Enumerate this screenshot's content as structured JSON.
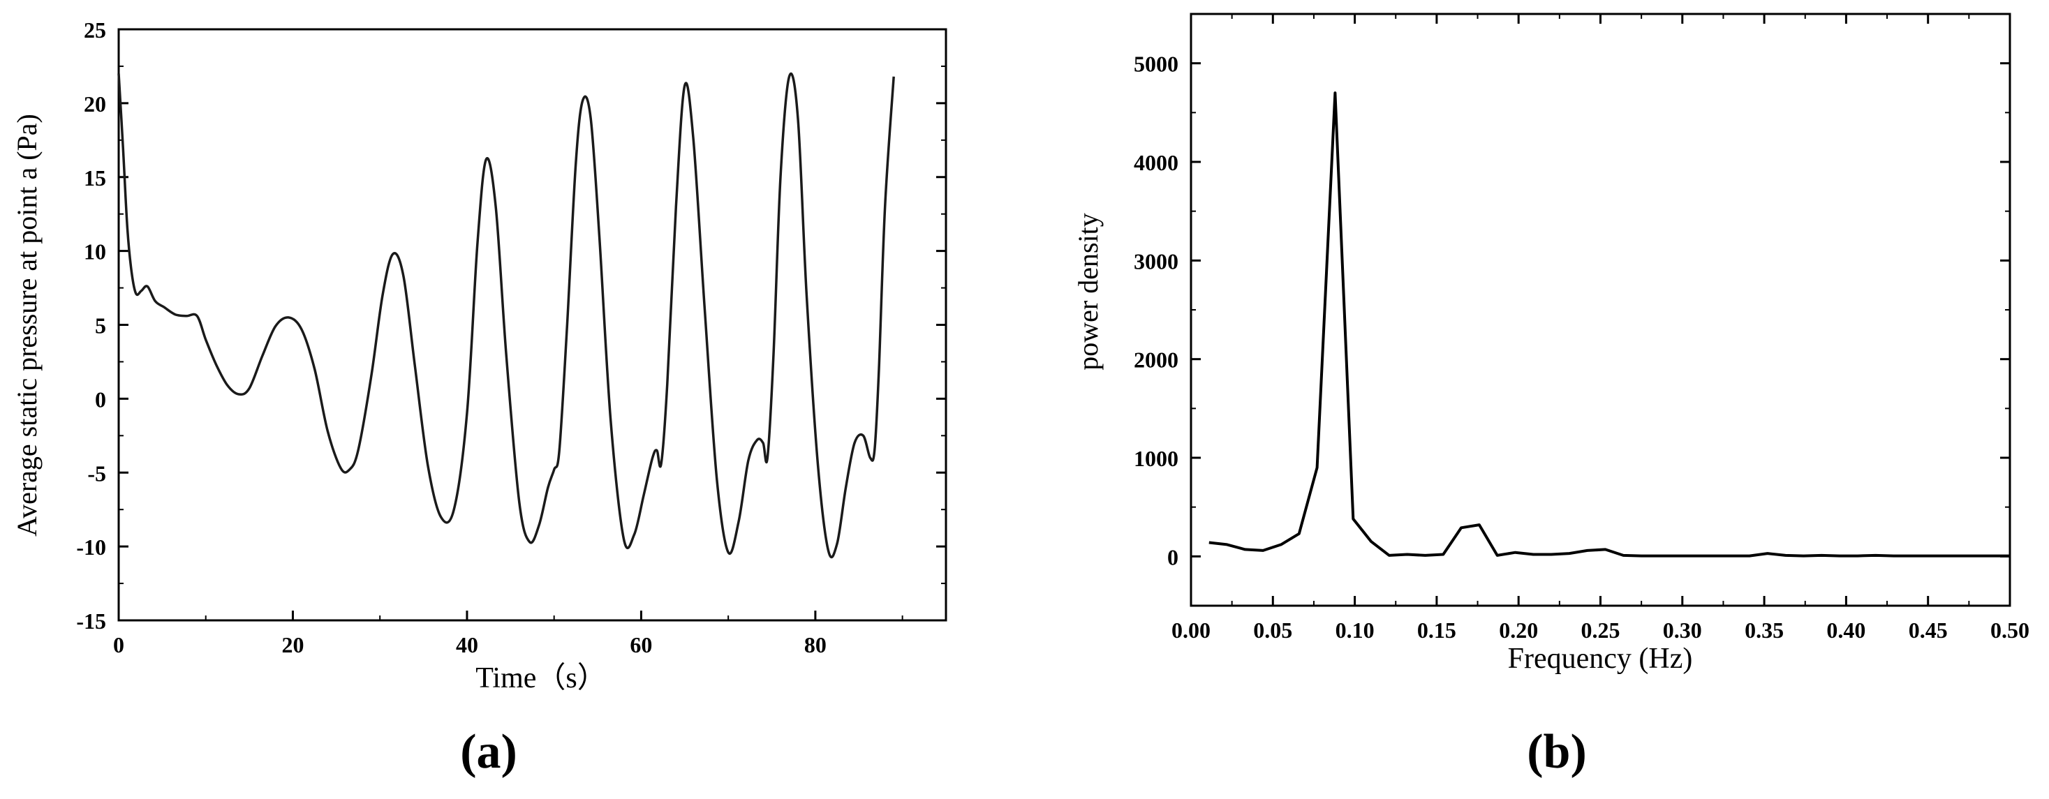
{
  "chart_data": [
    {
      "type": "line",
      "panel_label": "(a)",
      "title": "",
      "xlabel": "Time（s）",
      "ylabel": "Average static pressure at point a (Pa)",
      "xlim": [
        0,
        95
      ],
      "ylim": [
        -15,
        25
      ],
      "xticks": [
        "0",
        "20",
        "40",
        "60",
        "80"
      ],
      "yticks": [
        "-15",
        "-10",
        "-5",
        "0",
        "5",
        "10",
        "15",
        "20",
        "25"
      ],
      "grid": false,
      "color": "#1a1a1a",
      "series": [
        {
          "x": [
            0,
            0.5,
            1.0,
            1.5,
            2.0,
            2.6,
            3.3,
            4.2,
            5.2,
            6.5,
            7.8,
            9.0,
            10.0,
            11.2,
            12.5,
            13.8,
            15.0,
            16.5,
            18.0,
            19.5,
            21.0,
            22.5,
            24.0,
            25.5,
            26.5,
            27.5,
            29.0,
            30.3,
            31.5,
            32.7,
            34.0,
            35.5,
            37.0,
            38.5,
            40.0,
            41.2,
            42.2,
            43.3,
            44.5,
            46.0,
            47.2,
            48.3,
            49.3,
            50.0,
            50.6,
            51.5,
            52.5,
            53.3,
            54.2,
            55.2,
            56.5,
            58.0,
            59.2,
            60.3,
            61.3,
            61.8,
            62.3,
            63.0,
            64.0,
            65.0,
            66.0,
            67.3,
            68.7,
            70.0,
            71.2,
            72.3,
            73.3,
            74.0,
            74.5,
            75.2,
            76.0,
            77.0,
            78.0,
            79.0,
            80.3,
            81.5,
            82.5,
            83.5,
            84.5,
            85.5,
            86.3,
            86.8,
            87.3,
            88.0,
            89.0
          ],
          "y": [
            22,
            17,
            11.5,
            8.5,
            7.1,
            7.3,
            7.6,
            6.6,
            6.2,
            5.7,
            5.6,
            5.6,
            4.0,
            2.3,
            0.9,
            0.3,
            0.7,
            2.9,
            4.9,
            5.5,
            4.7,
            2.0,
            -2.2,
            -4.7,
            -4.8,
            -3.5,
            1.5,
            7.0,
            9.8,
            8.3,
            2.3,
            -4.5,
            -8.0,
            -7.5,
            -1.0,
            10.5,
            16.2,
            13.0,
            3.0,
            -7.0,
            -9.7,
            -8.5,
            -6.0,
            -4.8,
            -3.5,
            5.0,
            16.0,
            20.2,
            19.0,
            11.0,
            -1.5,
            -9.5,
            -9.2,
            -6.5,
            -4.0,
            -3.5,
            -4.4,
            1.0,
            13.0,
            21.2,
            17.5,
            6.0,
            -5.5,
            -10.4,
            -8.3,
            -4.2,
            -2.8,
            -3.0,
            -4.0,
            3.0,
            15.0,
            21.8,
            19.0,
            7.0,
            -4.5,
            -10.3,
            -9.8,
            -6.0,
            -3.0,
            -2.5,
            -4.0,
            -3.5,
            2.0,
            13.0,
            21.8
          ]
        }
      ]
    },
    {
      "type": "line",
      "panel_label": "(b)",
      "title": "",
      "xlabel": "Frequency (Hz)",
      "ylabel": "power density",
      "xlim": [
        0.0,
        0.5
      ],
      "ylim": [
        -500,
        5500
      ],
      "xticks": [
        "0.00",
        "0.05",
        "0.10",
        "0.15",
        "0.20",
        "0.25",
        "0.30",
        "0.35",
        "0.40",
        "0.45",
        "0.50"
      ],
      "yticks": [
        "0",
        "1000",
        "2000",
        "3000",
        "4000",
        "5000"
      ],
      "grid": false,
      "color": "#000000",
      "series": [
        {
          "x": [
            0.011,
            0.022,
            0.033,
            0.044,
            0.055,
            0.066,
            0.077,
            0.088,
            0.099,
            0.11,
            0.121,
            0.132,
            0.143,
            0.154,
            0.165,
            0.176,
            0.187,
            0.198,
            0.209,
            0.22,
            0.231,
            0.242,
            0.253,
            0.264,
            0.275,
            0.286,
            0.297,
            0.308,
            0.319,
            0.33,
            0.341,
            0.352,
            0.363,
            0.374,
            0.385,
            0.396,
            0.407,
            0.418,
            0.429,
            0.44,
            0.451,
            0.462,
            0.473,
            0.484,
            0.495,
            0.5
          ],
          "y": [
            140,
            120,
            70,
            60,
            120,
            230,
            900,
            4700,
            380,
            150,
            10,
            20,
            10,
            20,
            290,
            320,
            10,
            40,
            20,
            20,
            30,
            60,
            70,
            10,
            5,
            5,
            5,
            5,
            5,
            5,
            5,
            30,
            10,
            5,
            10,
            5,
            5,
            10,
            5,
            5,
            5,
            5,
            5,
            5,
            5,
            5
          ]
        }
      ]
    }
  ]
}
